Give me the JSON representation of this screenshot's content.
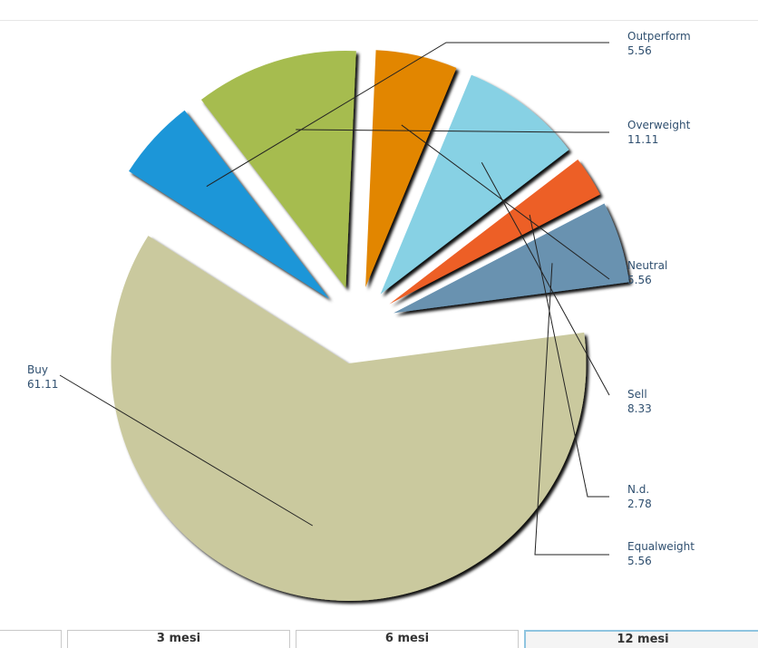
{
  "chart_data": {
    "type": "pie",
    "exploded": true,
    "slices": [
      {
        "label": "Outperform",
        "value": "5.56",
        "color": "#1e96d8"
      },
      {
        "label": "Overweight",
        "value": "11.11",
        "color": "#a6bc50"
      },
      {
        "label": "Neutral",
        "value": "5.56",
        "color": "#e28600"
      },
      {
        "label": "Sell",
        "value": "8.33",
        "color": "#87d1e4"
      },
      {
        "label": "N.d.",
        "value": "2.78",
        "color": "#ed5e25"
      },
      {
        "label": "Equalweight",
        "value": "5.56",
        "color": "#6992b0"
      },
      {
        "label": "Buy",
        "value": "61.11",
        "color": "#cac99e"
      }
    ]
  },
  "tabs": [
    {
      "label": ""
    },
    {
      "label": "3 mesi"
    },
    {
      "label": "6 mesi"
    },
    {
      "label": "12 mesi",
      "active": true
    }
  ]
}
